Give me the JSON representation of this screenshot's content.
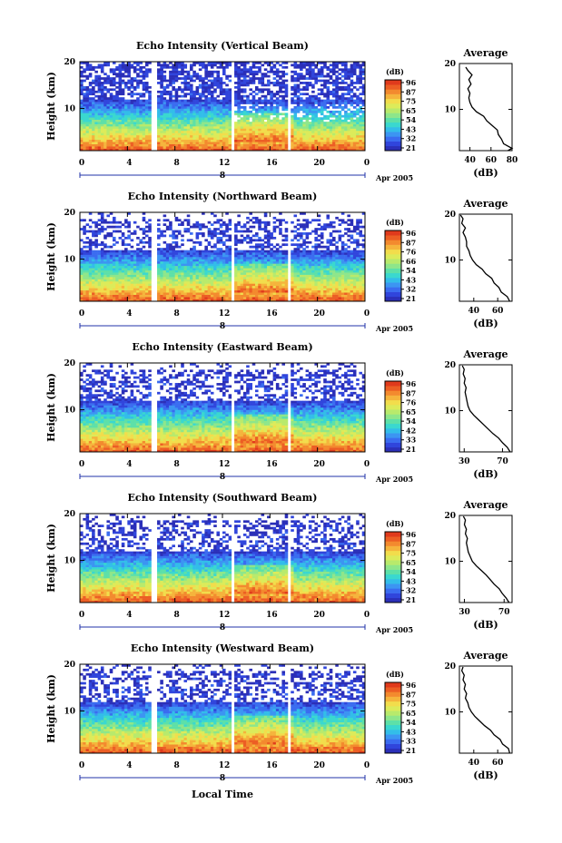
{
  "palette": [
    "#2b2fb8",
    "#3045dc",
    "#3a6cf0",
    "#3c95f2",
    "#33bde9",
    "#3ad8cf",
    "#5de0a8",
    "#8ee68a",
    "#b8ea6c",
    "#dceb5a",
    "#f2dd4c",
    "#f5b43c",
    "#f38a2e",
    "#ec5e24",
    "#e03a1c"
  ],
  "chart_data": [
    {
      "type": "heatmap",
      "title": "Echo Intensity (Vertical Beam)",
      "ylabel": "Height (km)",
      "xlabel": "",
      "x_ticks": [
        "0",
        "4",
        "8",
        "12",
        "16",
        "20",
        "0"
      ],
      "y_ticks": [
        "10",
        "20"
      ],
      "xlim": [
        0,
        24
      ],
      "ylim": [
        1,
        20
      ],
      "day_label": "8",
      "date_label": "Apr 2005",
      "colorbar": {
        "unit": "(dB)",
        "ticks": [
          "96",
          "87",
          "75",
          "65",
          "54",
          "43",
          "32",
          "21"
        ]
      },
      "average": {
        "title": "Average",
        "xlabel": "(dB)",
        "x_ticks": [
          "40",
          "60",
          "80"
        ],
        "xlim": [
          30,
          80
        ],
        "y_ticks": [
          "10",
          "20"
        ],
        "profile": [
          [
            76,
            1
          ],
          [
            80,
            1.5
          ],
          [
            72,
            2.5
          ],
          [
            70,
            3.5
          ],
          [
            67,
            4.5
          ],
          [
            66,
            5.5
          ],
          [
            61,
            6.5
          ],
          [
            56,
            7.5
          ],
          [
            53,
            8.5
          ],
          [
            46,
            9.5
          ],
          [
            42,
            10.5
          ],
          [
            40,
            11.5
          ],
          [
            39,
            12.5
          ],
          [
            40,
            13.5
          ],
          [
            38,
            14.5
          ],
          [
            41,
            15.5
          ],
          [
            39,
            16.5
          ],
          [
            42,
            17.5
          ],
          [
            38,
            18.5
          ],
          [
            36,
            19.2
          ]
        ]
      }
    },
    {
      "type": "heatmap",
      "title": "Echo Intensity (Northward Beam)",
      "ylabel": "Height (km)",
      "xlabel": "",
      "x_ticks": [
        "0",
        "4",
        "8",
        "12",
        "16",
        "20",
        "0"
      ],
      "y_ticks": [
        "10",
        "20"
      ],
      "xlim": [
        0,
        24
      ],
      "ylim": [
        1,
        20
      ],
      "day_label": "8",
      "date_label": "Apr 2005",
      "colorbar": {
        "unit": "(dB)",
        "ticks": [
          "96",
          "87",
          "76",
          "66",
          "54",
          "43",
          "32",
          "21"
        ]
      },
      "average": {
        "title": "Average",
        "xlabel": "(dB)",
        "x_ticks": [
          "40",
          "60"
        ],
        "xlim": [
          28,
          72
        ],
        "y_ticks": [
          "10",
          "20"
        ],
        "profile": [
          [
            70,
            1
          ],
          [
            68,
            2
          ],
          [
            63,
            3
          ],
          [
            61,
            4
          ],
          [
            57,
            5
          ],
          [
            55,
            6
          ],
          [
            50,
            7
          ],
          [
            47,
            8
          ],
          [
            42,
            9
          ],
          [
            39,
            10
          ],
          [
            37,
            11
          ],
          [
            36,
            12
          ],
          [
            34,
            13
          ],
          [
            34,
            14
          ],
          [
            33,
            15
          ],
          [
            31,
            16
          ],
          [
            33,
            17
          ],
          [
            30,
            18
          ],
          [
            31,
            19
          ],
          [
            29,
            19.8
          ]
        ]
      }
    },
    {
      "type": "heatmap",
      "title": "Echo Intensity (Eastward Beam)",
      "ylabel": "Height (km)",
      "xlabel": "",
      "x_ticks": [
        "0",
        "4",
        "8",
        "12",
        "16",
        "20",
        "0"
      ],
      "y_ticks": [
        "10",
        "20"
      ],
      "xlim": [
        0,
        24
      ],
      "ylim": [
        1,
        20
      ],
      "day_label": "8",
      "date_label": "Apr 2005",
      "colorbar": {
        "unit": "(dB)",
        "ticks": [
          "96",
          "87",
          "76",
          "65",
          "54",
          "42",
          "33",
          "21"
        ]
      },
      "average": {
        "title": "Average",
        "xlabel": "(dB)",
        "x_ticks": [
          "30",
          "70"
        ],
        "xlim": [
          25,
          80
        ],
        "y_ticks": [
          "10",
          "20"
        ],
        "profile": [
          [
            78,
            1
          ],
          [
            75,
            2
          ],
          [
            70,
            3
          ],
          [
            66,
            4
          ],
          [
            60,
            5
          ],
          [
            55,
            6
          ],
          [
            50,
            7
          ],
          [
            45,
            8
          ],
          [
            40,
            9
          ],
          [
            36,
            10
          ],
          [
            34,
            11
          ],
          [
            33,
            12
          ],
          [
            32,
            13
          ],
          [
            31,
            14
          ],
          [
            32,
            15
          ],
          [
            30,
            16
          ],
          [
            31,
            17
          ],
          [
            29,
            18
          ],
          [
            30,
            19
          ],
          [
            28,
            19.8
          ]
        ]
      }
    },
    {
      "type": "heatmap",
      "title": "Echo Intensity (Southward Beam)",
      "ylabel": "Height (km)",
      "xlabel": "",
      "x_ticks": [
        "0",
        "4",
        "8",
        "12",
        "16",
        "20",
        "0"
      ],
      "y_ticks": [
        "10",
        "20"
      ],
      "xlim": [
        0,
        24
      ],
      "ylim": [
        1,
        20
      ],
      "day_label": "8",
      "date_label": "Apr 2005",
      "colorbar": {
        "unit": "(dB)",
        "ticks": [
          "96",
          "87",
          "75",
          "65",
          "54",
          "43",
          "32",
          "21"
        ]
      },
      "average": {
        "title": "Average",
        "xlabel": "(dB)",
        "x_ticks": [
          "30",
          "70"
        ],
        "xlim": [
          25,
          78
        ],
        "y_ticks": [
          "10",
          "20"
        ],
        "profile": [
          [
            75,
            1
          ],
          [
            72,
            2
          ],
          [
            68,
            3
          ],
          [
            65,
            4
          ],
          [
            60,
            5
          ],
          [
            56,
            6
          ],
          [
            52,
            7
          ],
          [
            47,
            8
          ],
          [
            42,
            9
          ],
          [
            38,
            10
          ],
          [
            36,
            11
          ],
          [
            34,
            12
          ],
          [
            33,
            13
          ],
          [
            32,
            14
          ],
          [
            33,
            15
          ],
          [
            31,
            16
          ],
          [
            32,
            17
          ],
          [
            30,
            18
          ],
          [
            31,
            19
          ],
          [
            29,
            19.8
          ]
        ]
      }
    },
    {
      "type": "heatmap",
      "title": "Echo Intensity (Westward Beam)",
      "ylabel": "Height (km)",
      "xlabel": "Local Time",
      "x_ticks": [
        "0",
        "4",
        "8",
        "12",
        "16",
        "20",
        "0"
      ],
      "y_ticks": [
        "10",
        "20"
      ],
      "xlim": [
        0,
        24
      ],
      "ylim": [
        1,
        20
      ],
      "day_label": "8",
      "date_label": "Apr 2005",
      "colorbar": {
        "unit": "(dB)",
        "ticks": [
          "96",
          "87",
          "75",
          "65",
          "54",
          "43",
          "33",
          "21"
        ]
      },
      "average": {
        "title": "Average",
        "xlabel": "(dB)",
        "x_ticks": [
          "40",
          "60"
        ],
        "xlim": [
          28,
          72
        ],
        "y_ticks": [
          "10",
          "20"
        ],
        "profile": [
          [
            70,
            1
          ],
          [
            69,
            2
          ],
          [
            64,
            3
          ],
          [
            62,
            4
          ],
          [
            57,
            5
          ],
          [
            54,
            6
          ],
          [
            49,
            7
          ],
          [
            45,
            8
          ],
          [
            41,
            9
          ],
          [
            38,
            10
          ],
          [
            36,
            11
          ],
          [
            35,
            12
          ],
          [
            33,
            13
          ],
          [
            34,
            14
          ],
          [
            32,
            15
          ],
          [
            33,
            16
          ],
          [
            31,
            17
          ],
          [
            32,
            18
          ],
          [
            30,
            19
          ],
          [
            31,
            19.8
          ]
        ]
      }
    }
  ]
}
